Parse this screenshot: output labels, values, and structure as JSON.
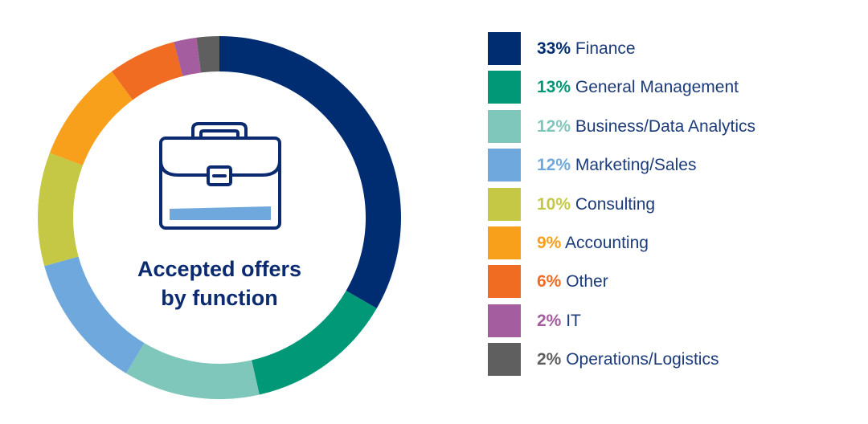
{
  "chart_data": {
    "type": "pie",
    "title_lines": [
      "Accepted offers",
      "by function"
    ],
    "slices": [
      {
        "label": "Finance",
        "pct_label": "33%",
        "value": 33,
        "color": "#002d72"
      },
      {
        "label": "General Management",
        "pct_label": "13%",
        "value": 13,
        "color": "#009877"
      },
      {
        "label": "Business/Data Analytics",
        "pct_label": "12%",
        "value": 12,
        "color": "#7fc7bb"
      },
      {
        "label": "Marketing/Sales",
        "pct_label": "12%",
        "value": 12,
        "color": "#6fa8dc"
      },
      {
        "label": "Consulting",
        "pct_label": "10%",
        "value": 10,
        "color": "#c5c845"
      },
      {
        "label": "Accounting",
        "pct_label": "9%",
        "value": 9,
        "color": "#f8a01c"
      },
      {
        "label": "Other",
        "pct_label": "6%",
        "value": 6,
        "color": "#ef6c22"
      },
      {
        "label": "IT",
        "pct_label": "2%",
        "value": 2,
        "color": "#a45d9e"
      },
      {
        "label": "Operations/Logistics",
        "pct_label": "2%",
        "value": 2,
        "color": "#5f5f5f"
      }
    ]
  },
  "icon": {
    "name": "briefcase-icon",
    "outline_color": "#0b2a6f",
    "accent_color": "#6fa8dc"
  }
}
